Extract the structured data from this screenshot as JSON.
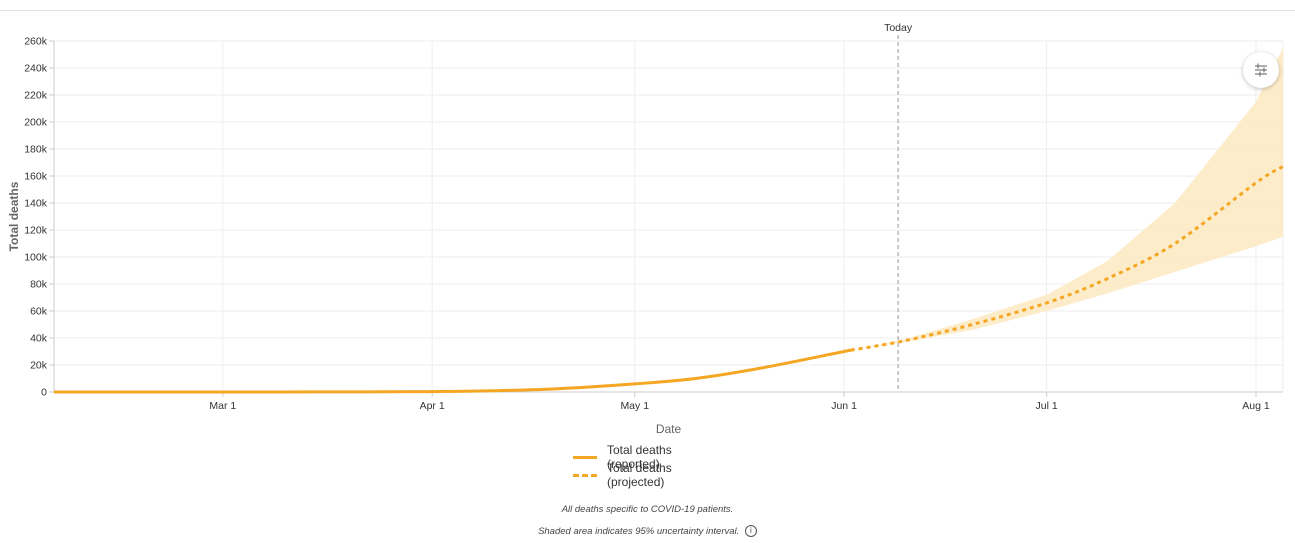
{
  "chart_data": {
    "type": "line",
    "title": "",
    "xlabel": "Date",
    "ylabel": "Total deaths",
    "xlim": [
      "2020-02-05",
      "2020-08-05"
    ],
    "ylim": [
      0,
      260000
    ],
    "x_ticks": [
      {
        "date": "2020-03-01",
        "label": "Mar 1"
      },
      {
        "date": "2020-04-01",
        "label": "Apr 1"
      },
      {
        "date": "2020-05-01",
        "label": "May 1"
      },
      {
        "date": "2020-06-01",
        "label": "Jun 1"
      },
      {
        "date": "2020-07-01",
        "label": "Jul 1"
      },
      {
        "date": "2020-08-01",
        "label": "Aug 1"
      }
    ],
    "y_ticks": [
      {
        "value": 0,
        "label": "0"
      },
      {
        "value": 20000,
        "label": "20k"
      },
      {
        "value": 40000,
        "label": "40k"
      },
      {
        "value": 60000,
        "label": "60k"
      },
      {
        "value": 80000,
        "label": "80k"
      },
      {
        "value": 100000,
        "label": "100k"
      },
      {
        "value": 120000,
        "label": "120k"
      },
      {
        "value": 140000,
        "label": "140k"
      },
      {
        "value": 160000,
        "label": "160k"
      },
      {
        "value": 180000,
        "label": "180k"
      },
      {
        "value": 200000,
        "label": "200k"
      },
      {
        "value": 220000,
        "label": "220k"
      },
      {
        "value": 240000,
        "label": "240k"
      },
      {
        "value": 260000,
        "label": "260k"
      }
    ],
    "grid": true,
    "series": [
      {
        "name": "Total deaths (reported)",
        "style": "solid",
        "color": "#f5a623",
        "points": [
          {
            "x": "2020-02-05",
            "y": 0
          },
          {
            "x": "2020-03-01",
            "y": 0
          },
          {
            "x": "2020-03-15",
            "y": 50
          },
          {
            "x": "2020-04-01",
            "y": 300
          },
          {
            "x": "2020-04-10",
            "y": 900
          },
          {
            "x": "2020-04-20",
            "y": 2500
          },
          {
            "x": "2020-05-01",
            "y": 6000
          },
          {
            "x": "2020-05-10",
            "y": 10000
          },
          {
            "x": "2020-05-20",
            "y": 18000
          },
          {
            "x": "2020-06-01",
            "y": 30000
          },
          {
            "x": "2020-06-02",
            "y": 31000
          }
        ]
      },
      {
        "name": "Total deaths (projected)",
        "style": "dashed",
        "color": "#f5a623",
        "points": [
          {
            "x": "2020-06-02",
            "y": 31000
          },
          {
            "x": "2020-06-10",
            "y": 38000
          },
          {
            "x": "2020-06-20",
            "y": 50000
          },
          {
            "x": "2020-07-01",
            "y": 66000
          },
          {
            "x": "2020-07-10",
            "y": 84000
          },
          {
            "x": "2020-07-20",
            "y": 110000
          },
          {
            "x": "2020-08-01",
            "y": 155000
          },
          {
            "x": "2020-08-05",
            "y": 167000
          }
        ]
      }
    ],
    "uncertainty_band": {
      "name": "95% uncertainty interval",
      "color": "#fde9c0",
      "points": [
        {
          "x": "2020-06-02",
          "lower": 31000,
          "upper": 31000
        },
        {
          "x": "2020-06-10",
          "lower": 37000,
          "upper": 39000
        },
        {
          "x": "2020-06-20",
          "lower": 46000,
          "upper": 54000
        },
        {
          "x": "2020-07-01",
          "lower": 60000,
          "upper": 72000
        },
        {
          "x": "2020-07-10",
          "lower": 73000,
          "upper": 97000
        },
        {
          "x": "2020-07-20",
          "lower": 89000,
          "upper": 140000
        },
        {
          "x": "2020-08-01",
          "lower": 108000,
          "upper": 215000
        },
        {
          "x": "2020-08-05",
          "lower": 115000,
          "upper": 255000
        }
      ]
    },
    "today": {
      "date": "2020-06-09",
      "label": "Today"
    }
  },
  "legend": [
    {
      "label": "Total deaths (reported)",
      "style": "solid"
    },
    {
      "label": "Total deaths (projected)",
      "style": "dashed"
    }
  ],
  "notes": {
    "line1": "All deaths specific to COVID-19 patients.",
    "line2": "Shaded area indicates 95% uncertainty interval.",
    "info_icon": "i"
  },
  "controls": {
    "settings_icon": "sliders-icon"
  }
}
